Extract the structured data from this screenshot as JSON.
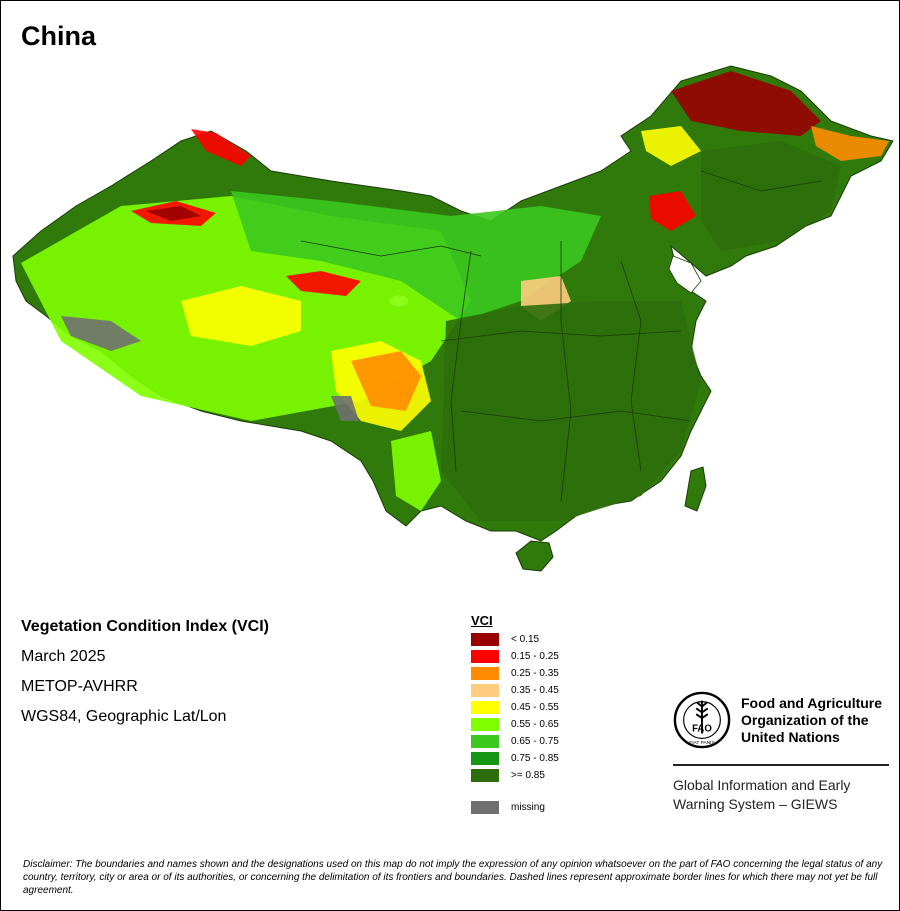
{
  "map": {
    "title": "China",
    "colors": {
      "land_base": "#2f7a0a",
      "land_border": "#1a3d06",
      "water": "#ffffff"
    }
  },
  "metadata": {
    "index_name": "Vegetation Condition Index (VCI)",
    "period": "March 2025",
    "sensor": "METOP-AVHRR",
    "projection": "WGS84, Geographic Lat/Lon"
  },
  "legend": {
    "title": "VCI",
    "items": [
      {
        "label": "< 0.15",
        "color": "#990000"
      },
      {
        "label": "0.15 - 0.25",
        "color": "#ff0000"
      },
      {
        "label": "0.25 - 0.35",
        "color": "#ff8c00"
      },
      {
        "label": "0.35 - 0.45",
        "color": "#ffcc80"
      },
      {
        "label": "0.45 - 0.55",
        "color": "#ffff00"
      },
      {
        "label": "0.55 - 0.65",
        "color": "#80ff00"
      },
      {
        "label": "0.65 - 0.75",
        "color": "#3cc81e"
      },
      {
        "label": "0.75 - 0.85",
        "color": "#149614"
      },
      {
        "label": ">= 0.85",
        "color": "#2d6e0a"
      }
    ],
    "missing": {
      "label": "missing",
      "color": "#707070"
    }
  },
  "organization": {
    "name": "Food and Agriculture Organization of the United Nations",
    "logo_text": "FAO",
    "logo_motto": "FIAT PANIS",
    "program": "Global Information and Early Warning System – GIEWS"
  },
  "disclaimer": "Disclaimer: The boundaries and names shown and the designations used on this map do not imply the expression of any opinion whatsoever on the part of FAO concerning the legal status of any country, territory, city or area or of its authorities, or concerning the delimitation of its frontiers and boundaries. Dashed lines represent approximate border lines for which there may not yet be full agreement."
}
